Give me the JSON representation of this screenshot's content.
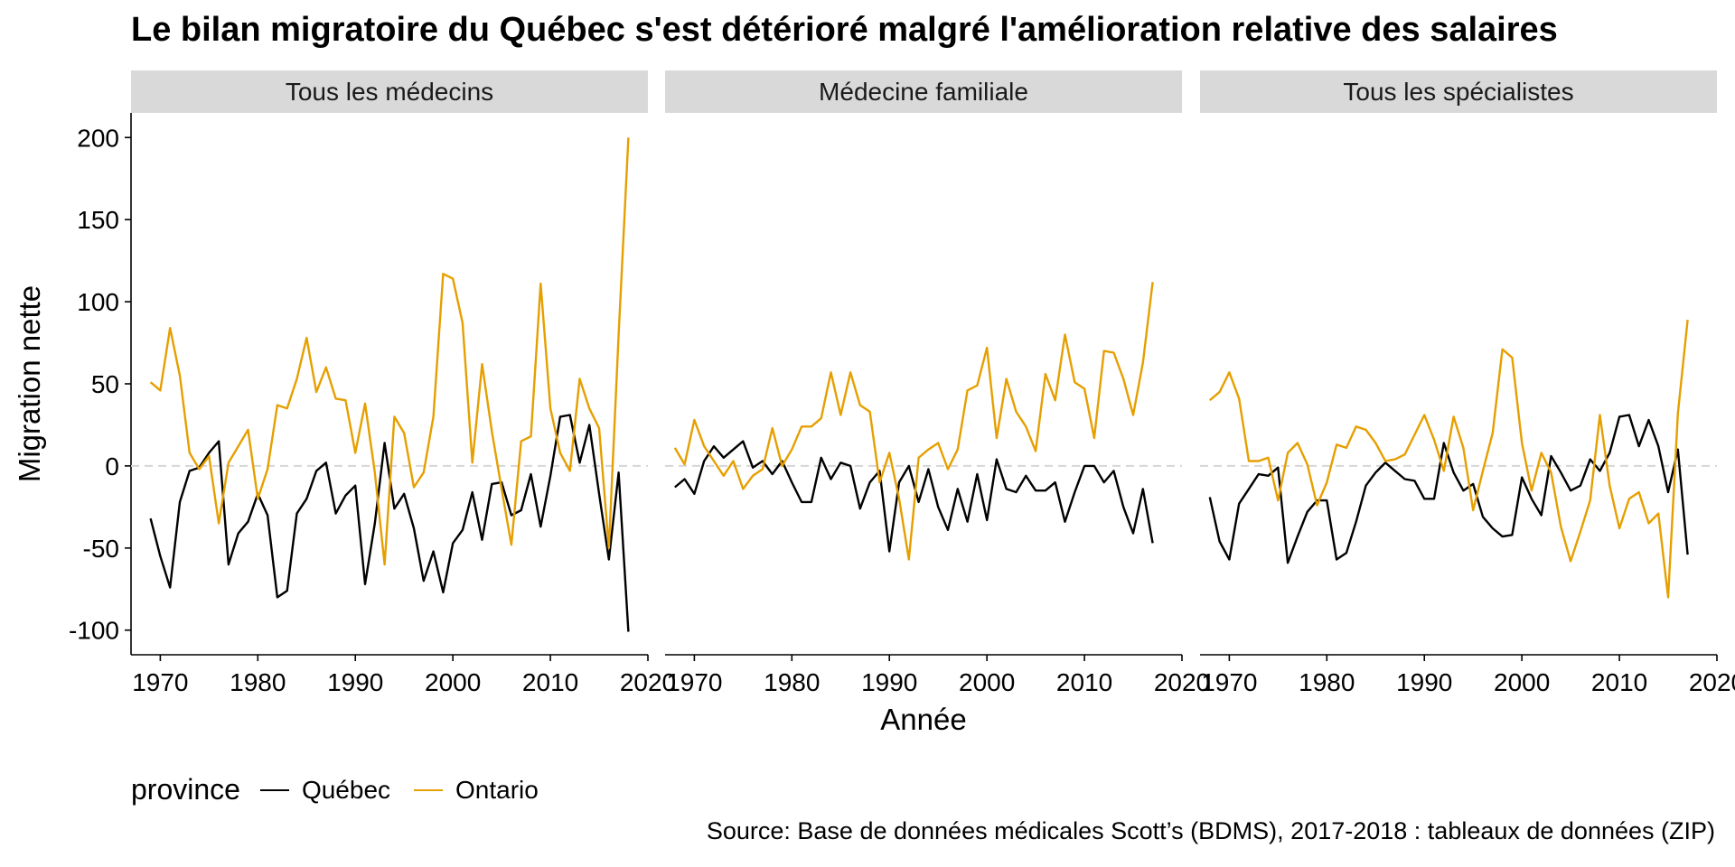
{
  "chart_data": {
    "type": "line",
    "title": "Le bilan migratoire du Québec s'est détérioré malgré l'amélioration relative des salaires",
    "xlabel": "Année",
    "ylabel": "Migration nette",
    "xlim": [
      1967,
      2020
    ],
    "ylim": [
      -115,
      215
    ],
    "x_ticks": [
      1970,
      1980,
      1990,
      2000,
      2010,
      2020
    ],
    "y_ticks": [
      200,
      150,
      100,
      50,
      0,
      -50,
      -100
    ],
    "zero_reference_line": "dashed",
    "grid": false,
    "legend_position": "bottom-left",
    "legend_title": "province",
    "series_colors": {
      "Québec": "#000000",
      "Ontario": "#E69F00"
    },
    "panels": [
      {
        "name": "Tous les médecins",
        "series": [
          {
            "name": "Québec",
            "x_start": 1969,
            "values": [
              -32,
              -55,
              -74,
              -22,
              -3,
              -1,
              8,
              15,
              -60,
              -41,
              -34,
              -17,
              -30,
              -80,
              -76,
              -29,
              -20,
              -3,
              2,
              -29,
              -18,
              -12,
              -72,
              -35,
              14,
              -26,
              -17,
              -38,
              -70,
              -52,
              -77,
              -47,
              -39,
              -16,
              -45,
              -11,
              -10,
              -30,
              -27,
              -5,
              -37,
              -6,
              30,
              31,
              2,
              25,
              -17,
              -57,
              -4,
              -101
            ]
          },
          {
            "name": "Ontario",
            "x_start": 1969,
            "values": [
              51,
              46,
              84,
              55,
              8,
              -2,
              6,
              -35,
              2,
              12,
              22,
              -20,
              -2,
              37,
              35,
              53,
              78,
              45,
              60,
              41,
              40,
              8,
              38,
              -4,
              -60,
              30,
              20,
              -13,
              -4,
              30,
              117,
              114,
              87,
              2,
              62,
              21,
              -14,
              -48,
              15,
              18,
              111,
              35,
              8,
              -3,
              53,
              35,
              23,
              -50,
              80,
              200
            ]
          }
        ]
      },
      {
        "name": "Médecine familiale",
        "series": [
          {
            "name": "Québec",
            "x_start": 1968,
            "values": [
              -13,
              -8,
              -17,
              3,
              12,
              5,
              10,
              15,
              -1,
              3,
              -5,
              3,
              -10,
              -22,
              -22,
              5,
              -8,
              2,
              0,
              -26,
              -10,
              -3,
              -52,
              -10,
              0,
              -22,
              -2,
              -25,
              -39,
              -14,
              -34,
              -5,
              -33,
              4,
              -14,
              -16,
              -6,
              -15,
              -15,
              -10,
              -34,
              -16,
              0,
              0,
              -10,
              -3,
              -25,
              -41,
              -14,
              -47
            ]
          },
          {
            "name": "Ontario",
            "x_start": 1968,
            "values": [
              11,
              1,
              28,
              12,
              3,
              -6,
              3,
              -14,
              -6,
              -2,
              23,
              0,
              10,
              24,
              24,
              29,
              57,
              31,
              57,
              37,
              33,
              -10,
              8,
              -20,
              -57,
              5,
              10,
              14,
              -2,
              10,
              46,
              49,
              72,
              17,
              53,
              33,
              24,
              9,
              56,
              40,
              80,
              51,
              47,
              17,
              70,
              69,
              53,
              31,
              63,
              112
            ]
          }
        ]
      },
      {
        "name": "Tous les spécialistes",
        "series": [
          {
            "name": "Québec",
            "x_start": 1968,
            "values": [
              -19,
              -46,
              -57,
              -23,
              -14,
              -5,
              -6,
              -1,
              -59,
              -43,
              -28,
              -21,
              -21,
              -57,
              -53,
              -34,
              -12,
              -4,
              2,
              -3,
              -8,
              -9,
              -20,
              -20,
              14,
              -4,
              -15,
              -11,
              -31,
              -38,
              -43,
              -42,
              -7,
              -20,
              -30,
              6,
              -4,
              -15,
              -12,
              4,
              -3,
              8,
              30,
              31,
              12,
              28,
              12,
              -16,
              10,
              -54
            ]
          },
          {
            "name": "Ontario",
            "x_start": 1968,
            "values": [
              40,
              45,
              57,
              41,
              3,
              3,
              5,
              -21,
              8,
              14,
              1,
              -24,
              -10,
              13,
              11,
              24,
              22,
              14,
              3,
              4,
              7,
              19,
              31,
              16,
              -3,
              30,
              11,
              -27,
              -3,
              20,
              71,
              66,
              14,
              -15,
              8,
              -4,
              -37,
              -58,
              -40,
              -21,
              31,
              -12,
              -38,
              -20,
              -16,
              -35,
              -29,
              -80,
              32,
              89
            ]
          }
        ]
      }
    ]
  },
  "labels": {
    "title": "Le bilan migratoire du Québec s'est détérioré malgré l'amélioration relative des salaires",
    "xlabel": "Année",
    "ylabel": "Migration nette",
    "legend_title": "province",
    "legend_items": [
      "Québec",
      "Ontario"
    ],
    "source": "Source: Base de données médicales Scott’s (BDMS), 2017-2018 : tableaux de données (ZIP)"
  }
}
